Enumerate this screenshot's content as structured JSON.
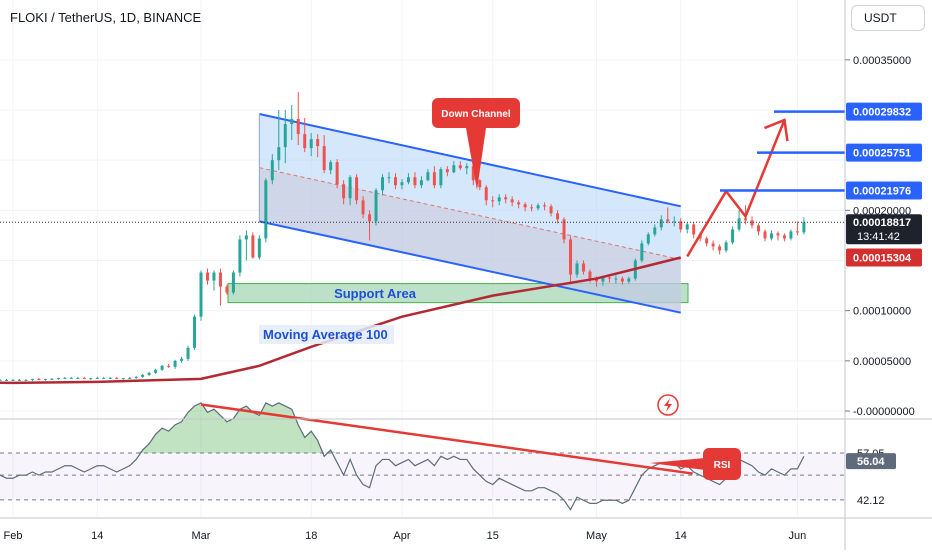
{
  "header": {
    "symbol_line": "FLOKI / TetherUS, 1D, BINANCE"
  },
  "currency_button": "USDT",
  "chart_data": [
    {
      "type": "candlestick",
      "title": "FLOKI / TetherUS, 1D, BINANCE",
      "ylim": [
        0,
        0.00038
      ],
      "y_ticks": [
        "0.00035000",
        "0.00020000",
        "0.00010000",
        "0.00005000",
        "-0.00000000"
      ],
      "y_tick_values": [
        0.00035,
        0.0002,
        0.0001,
        5e-05,
        0
      ],
      "x_ticks": [
        "Feb",
        "14",
        "Mar",
        "18",
        "Apr",
        "15",
        "May",
        "14",
        "Jun"
      ],
      "x_tick_dates": [
        "2024-02-01",
        "2024-02-14",
        "2024-03-01",
        "2024-03-18",
        "2024-04-01",
        "2024-04-15",
        "2024-05-01",
        "2024-05-14",
        "2024-06-01"
      ],
      "colors": {
        "up": "#26a69a",
        "down": "#ef5350",
        "ma": "#b22833",
        "channel": "#2962ff",
        "price_line": "#333333"
      },
      "current_price": {
        "label": "0.00018817",
        "value": 0.00018817,
        "countdown": "13:41:42"
      },
      "level_labels": [
        {
          "label": "0.00029832",
          "value": 0.00029832,
          "color": "#2962ff"
        },
        {
          "label": "0.00025751",
          "value": 0.00025751,
          "color": "#2962ff"
        },
        {
          "label": "0.00021976",
          "value": 0.00021976,
          "color": "#2962ff"
        },
        {
          "label": "0.00015304",
          "value": 0.00015304,
          "color": "#d32f2f"
        }
      ],
      "annotations": {
        "channel": "Down Channel",
        "support": "Support Area",
        "ma": "Moving Average 100"
      },
      "support_zone": [
        0.000108,
        0.000127
      ],
      "channel": {
        "upper": [
          [
            "2024-03-10",
            0.000296
          ],
          [
            "2024-05-14",
            0.000204
          ]
        ],
        "lower": [
          [
            "2024-03-10",
            0.000189
          ],
          [
            "2024-05-14",
            9.8e-05
          ]
        ]
      },
      "projection": [
        [
          "2024-05-15",
          0.000154
        ],
        [
          "2024-05-21",
          0.000219
        ],
        [
          "2024-05-24",
          0.000194
        ],
        [
          "2024-05-30",
          0.00029
        ]
      ],
      "ma100": [
        [
          "2024-01-15",
          2.9e-05
        ],
        [
          "2024-02-01",
          2.8e-05
        ],
        [
          "2024-02-14",
          2.9e-05
        ],
        [
          "2024-03-01",
          3.2e-05
        ],
        [
          "2024-03-10",
          4.5e-05
        ],
        [
          "2024-03-18",
          6.4e-05
        ],
        [
          "2024-04-01",
          9.4e-05
        ],
        [
          "2024-04-15",
          0.000115
        ],
        [
          "2024-05-01",
          0.000132
        ],
        [
          "2024-05-14",
          0.000153
        ]
      ],
      "series": [
        {
          "name": "FLOKIUSDT",
          "start": "2024-01-15",
          "open": [
            3e-05,
            3e-05,
            2.9e-05,
            2.9e-05,
            3e-05,
            2.9e-05,
            2.9e-05,
            2.9e-05,
            3e-05,
            3e-05,
            3e-05,
            3e-05,
            3e-05,
            3.1e-05,
            3.1e-05,
            3.1e-05,
            3.1e-05,
            3.1e-05,
            3.1e-05,
            3.1e-05,
            3.1e-05,
            3.2e-05,
            3.1e-05,
            3.2e-05,
            3.2e-05,
            3.3e-05,
            3.3e-05,
            3.3e-05,
            3.3e-05,
            3.2e-05,
            3.3e-05,
            3.3e-05,
            3.3e-05,
            3.3e-05,
            3.2e-05,
            3.3e-05,
            3.3e-05,
            3.4e-05,
            3.6e-05,
            3.8e-05,
            4.1e-05,
            4.5e-05,
            4.4e-05,
            5e-05,
            5.2e-05,
            6.3e-05,
            9.4e-05,
            0.000138,
            0.00013,
            0.000138,
            0.000124,
            0.000118,
            0.000138,
            0.000171,
            0.000175,
            0.000153,
            0.000172,
            0.00023,
            0.00025,
            0.000263,
            0.000286,
            0.000291,
            0.000276,
            0.000262,
            0.000271,
            0.000264,
            0.00024,
            0.000248,
            0.000226,
            0.000212,
            0.000233,
            0.00021,
            0.000196,
            0.000189,
            0.00022,
            0.000233,
            0.000233,
            0.000225,
            0.000228,
            0.000233,
            0.000225,
            0.00023,
            0.000238,
            0.000225,
            0.000241,
            0.000238,
            0.000245,
            0.000242,
            0.000244,
            0.00023,
            0.000223,
            0.00021,
            0.000209,
            0.000213,
            0.000211,
            0.000208,
            0.000206,
            0.000203,
            0.000202,
            0.000205,
            0.000204,
            0.000197,
            0.000191,
            0.000171,
            0.000136,
            0.000147,
            0.000139,
            0.000132,
            0.000129,
            0.000133,
            0.000132,
            0.000132,
            0.000129,
            0.000132,
            0.00015,
            0.000167,
            0.000176,
            0.000183,
            0.000191,
            0.000189,
            0.000189,
            0.000181,
            0.000186,
            0.000176,
            0.000172,
            0.000167,
            0.000164,
            0.00016,
            0.000168,
            0.000181,
            0.000192,
            0.00019,
            0.000185,
            0.000179,
            0.000172,
            0.000177,
            0.000175,
            0.000172,
            0.000179,
            0.000178
          ],
          "high": [
            3.1e-05,
            3.1e-05,
            3e-05,
            3e-05,
            3.1e-05,
            3e-05,
            3e-05,
            3e-05,
            3.1e-05,
            3.1e-05,
            3.1e-05,
            3.1e-05,
            3.1e-05,
            3.2e-05,
            3.2e-05,
            3.2e-05,
            3.2e-05,
            3.2e-05,
            3.2e-05,
            3.2e-05,
            3.2e-05,
            3.3e-05,
            3.2e-05,
            3.3e-05,
            3.3e-05,
            3.4e-05,
            3.4e-05,
            3.4e-05,
            3.4e-05,
            3.3e-05,
            3.4e-05,
            3.4e-05,
            3.4e-05,
            3.4e-05,
            3.3e-05,
            3.4e-05,
            3.5e-05,
            3.7e-05,
            3.9e-05,
            4.2e-05,
            4.6e-05,
            4.7e-05,
            5.1e-05,
            5.4e-05,
            6.5e-05,
            9.6e-05,
            0.00014,
            0.000142,
            0.00014,
            0.000142,
            0.000126,
            0.00014,
            0.000175,
            0.00018,
            0.000178,
            0.000175,
            0.000232,
            0.000256,
            0.0003,
            0.0003,
            0.000305,
            0.000318,
            0.000292,
            0.000277,
            0.000276,
            0.000275,
            0.00025,
            0.000251,
            0.00023,
            0.000235,
            0.000236,
            0.000214,
            0.0002,
            0.000222,
            0.000236,
            0.000238,
            0.000237,
            0.000231,
            0.000237,
            0.000238,
            0.000234,
            0.000241,
            0.000244,
            0.000243,
            0.000244,
            0.000249,
            0.000249,
            0.000247,
            0.000246,
            0.000231,
            0.000225,
            0.000214,
            0.000216,
            0.000216,
            0.000214,
            0.00021,
            0.000208,
            0.000206,
            0.000207,
            0.000208,
            0.000206,
            0.0002,
            0.000193,
            0.000174,
            0.00015,
            0.00015,
            0.000141,
            0.000134,
            0.000135,
            0.000136,
            0.000135,
            0.000134,
            0.000134,
            0.000152,
            0.00017,
            0.000178,
            0.000186,
            0.000195,
            0.000203,
            0.000194,
            0.000192,
            0.000188,
            0.000188,
            0.000178,
            0.000174,
            0.00017,
            0.000166,
            0.00017,
            0.000184,
            0.0002,
            0.000205,
            0.000194,
            0.000187,
            0.000181,
            0.00018,
            0.000179,
            0.000177,
            0.000181,
            0.000189,
            0.000193
          ],
          "low": [
            2.9e-05,
            2.9e-05,
            2.8e-05,
            2.8e-05,
            2.9e-05,
            2.8e-05,
            2.8e-05,
            2.8e-05,
            2.9e-05,
            2.9e-05,
            2.9e-05,
            2.9e-05,
            2.9e-05,
            3e-05,
            3e-05,
            3e-05,
            3e-05,
            3e-05,
            3e-05,
            3e-05,
            3e-05,
            3.1e-05,
            3e-05,
            3.1e-05,
            3.1e-05,
            3.2e-05,
            3.2e-05,
            3.2e-05,
            3.2e-05,
            3.1e-05,
            3.2e-05,
            3.2e-05,
            3.2e-05,
            3.2e-05,
            3.1e-05,
            3.2e-05,
            3.2e-05,
            3.3e-05,
            3.5e-05,
            3.7e-05,
            4e-05,
            4.3e-05,
            4.2e-05,
            4.8e-05,
            5e-05,
            6.1e-05,
            9e-05,
            0.000126,
            0.00012,
            0.000105,
            0.000116,
            0.000116,
            0.000134,
            0.00015,
            0.000152,
            0.000151,
            0.000168,
            0.000226,
            0.00024,
            0.000247,
            0.00027,
            0.000265,
            0.000258,
            0.000254,
            0.000253,
            0.000237,
            0.000236,
            0.000222,
            0.000206,
            0.000205,
            0.000206,
            0.000192,
            0.00017,
            0.000185,
            0.000215,
            0.000227,
            0.000221,
            0.000221,
            0.000226,
            0.000222,
            0.000222,
            0.000229,
            0.000222,
            0.000222,
            0.000234,
            0.000237,
            0.00024,
            0.000236,
            0.000225,
            0.00022,
            0.000205,
            0.000203,
            0.000205,
            0.000207,
            0.000204,
            0.000202,
            0.000199,
            0.000199,
            0.0002,
            0.0002,
            0.000194,
            0.000187,
            0.000167,
            0.000126,
            0.000133,
            0.000136,
            0.000128,
            0.000124,
            0.000125,
            0.000128,
            0.000127,
            0.000126,
            0.000127,
            0.00013,
            0.000148,
            0.000165,
            0.000174,
            0.00018,
            0.000187,
            0.000184,
            0.000178,
            0.000177,
            0.000172,
            0.000169,
            0.000164,
            0.00016,
            0.000156,
            0.000158,
            0.000166,
            0.000179,
            0.000186,
            0.000182,
            0.000175,
            0.000169,
            0.00017,
            0.00017,
            0.000169,
            0.00017,
            0.000175,
            0.000176
          ],
          "close": [
            3e-05,
            2.9e-05,
            2.9e-05,
            3e-05,
            2.9e-05,
            2.9e-05,
            2.9e-05,
            3e-05,
            3e-05,
            3e-05,
            3e-05,
            3e-05,
            3.1e-05,
            3.1e-05,
            3.1e-05,
            3.1e-05,
            3.1e-05,
            3.1e-05,
            3.1e-05,
            3.1e-05,
            3.2e-05,
            3.1e-05,
            3.2e-05,
            3.2e-05,
            3.3e-05,
            3.3e-05,
            3.3e-05,
            3.3e-05,
            3.2e-05,
            3.3e-05,
            3.3e-05,
            3.3e-05,
            3.3e-05,
            3.2e-05,
            3.3e-05,
            3.3e-05,
            3.4e-05,
            3.6e-05,
            3.8e-05,
            4.1e-05,
            4.5e-05,
            4.4e-05,
            5e-05,
            5.2e-05,
            6.3e-05,
            9.4e-05,
            0.000138,
            0.00013,
            0.000138,
            0.000124,
            0.000118,
            0.000138,
            0.000171,
            0.000175,
            0.000153,
            0.000172,
            0.00023,
            0.00025,
            0.000263,
            0.000286,
            0.000291,
            0.000276,
            0.000262,
            0.000271,
            0.000264,
            0.00024,
            0.000248,
            0.000226,
            0.000212,
            0.000233,
            0.00021,
            0.000196,
            0.000189,
            0.00022,
            0.000233,
            0.000233,
            0.000225,
            0.000228,
            0.000233,
            0.000225,
            0.00023,
            0.000238,
            0.000225,
            0.000241,
            0.000238,
            0.000245,
            0.000242,
            0.000244,
            0.00023,
            0.000223,
            0.00021,
            0.000209,
            0.000213,
            0.000211,
            0.000208,
            0.000206,
            0.000203,
            0.000202,
            0.000205,
            0.000204,
            0.000197,
            0.000191,
            0.000171,
            0.000136,
            0.000147,
            0.000139,
            0.000132,
            0.000129,
            0.000133,
            0.000132,
            0.000132,
            0.000129,
            0.000132,
            0.00015,
            0.000167,
            0.000176,
            0.000183,
            0.000191,
            0.000189,
            0.000189,
            0.000181,
            0.000186,
            0.000176,
            0.000172,
            0.000167,
            0.000164,
            0.00016,
            0.000168,
            0.000181,
            0.000192,
            0.00019,
            0.000185,
            0.000179,
            0.000172,
            0.000177,
            0.000175,
            0.000172,
            0.000179,
            0.000178,
            0.000188
          ]
        }
      ]
    },
    {
      "type": "line",
      "name": "RSI",
      "ylim": [
        35,
        80
      ],
      "y_ticks": [
        "57.05",
        "42.12"
      ],
      "y_tick_values": [
        57.05,
        42.12
      ],
      "current": {
        "label": "56.04",
        "value": 56.04
      },
      "bands": {
        "upper": 57.05,
        "middle": 50,
        "lower": 42.12
      },
      "annotation": "RSI",
      "trendline": [
        [
          "2024-03-01",
          72.5
        ],
        [
          "2024-05-14",
          50.5
        ]
      ],
      "values": [
        46,
        45,
        45,
        46,
        45,
        46,
        47,
        47,
        48,
        47,
        48,
        48,
        49,
        50,
        50,
        50,
        49,
        49,
        50,
        50,
        51,
        50,
        51,
        51,
        52,
        53,
        53,
        52,
        51,
        52,
        53,
        53,
        52,
        51,
        52,
        53,
        55,
        58,
        60,
        63,
        65,
        64,
        66,
        67,
        70,
        72,
        73,
        70,
        71,
        69,
        67,
        68,
        71,
        72,
        70,
        69,
        73,
        72,
        73,
        72,
        71,
        66,
        62,
        64,
        61,
        56,
        58,
        54,
        50,
        55,
        50,
        47,
        46,
        53,
        55,
        55,
        53,
        54,
        55,
        53,
        54,
        55,
        53,
        56,
        55,
        56,
        55,
        55,
        52,
        50,
        48,
        47,
        49,
        48,
        47,
        46,
        45,
        45,
        46,
        46,
        45,
        44,
        42,
        39,
        43,
        42,
        41,
        41,
        42,
        42,
        42,
        41,
        42,
        46,
        50,
        52,
        53,
        54,
        54,
        54,
        52,
        53,
        51,
        50,
        49,
        48,
        47,
        49,
        52,
        55,
        54,
        53,
        51,
        50,
        52,
        51,
        50,
        52,
        52,
        56
      ]
    }
  ],
  "markers": {
    "lightning_icon": "lightning-icon"
  }
}
